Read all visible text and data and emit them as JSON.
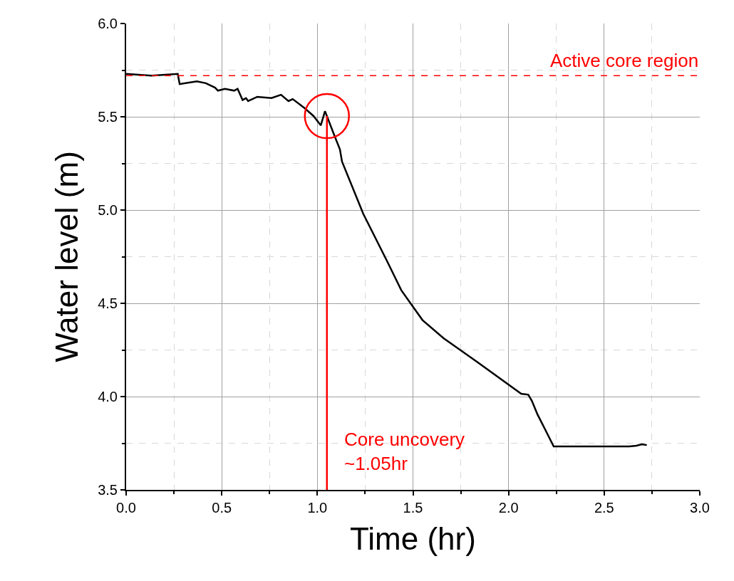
{
  "chart_data": {
    "type": "line",
    "xlabel": "Time (hr)",
    "ylabel": "Water level (m)",
    "xlim": [
      0,
      3
    ],
    "xticks": [
      {
        "value": 0,
        "label": "0.0"
      },
      {
        "value": 0.5,
        "label": "0.5"
      },
      {
        "value": 1,
        "label": "1.0"
      },
      {
        "value": 1.5,
        "label": "1.5"
      },
      {
        "value": 2,
        "label": "2.0"
      },
      {
        "value": 2.5,
        "label": "2.5"
      },
      {
        "value": 3,
        "label": "3.0"
      }
    ],
    "ylim": [
      3.5,
      6
    ],
    "yticks": [
      {
        "value": 3.5,
        "label": "3.5"
      },
      {
        "value": 4,
        "label": "4.0"
      },
      {
        "value": 4.5,
        "label": "4.5"
      },
      {
        "value": 5,
        "label": "5.0"
      },
      {
        "value": 5.5,
        "label": "5.5"
      },
      {
        "value": 6,
        "label": "6.0"
      }
    ],
    "grid": true,
    "marker": "none",
    "line_style": "solid",
    "series": [
      {
        "color": "#000000",
        "x": [
          0,
          0.133,
          0.27,
          0.28,
          0.37,
          0.417,
          0.465,
          0.48,
          0.517,
          0.565,
          0.583,
          0.609,
          0.627,
          0.638,
          0.686,
          0.76,
          0.81,
          0.849,
          0.871,
          0.934,
          0.98,
          1.018,
          1.04,
          1.089,
          1.118,
          1.129,
          1.24,
          1.365,
          1.439,
          1.498,
          1.55,
          1.66,
          1.83,
          2.066,
          2.103,
          2.122,
          2.151,
          2.188,
          2.236,
          2.631,
          2.668,
          2.697,
          2.723
        ],
        "values": [
          5.73,
          5.72,
          5.73,
          5.675,
          5.69,
          5.68,
          5.656,
          5.64,
          5.65,
          5.64,
          5.65,
          5.59,
          5.6,
          5.584,
          5.607,
          5.6,
          5.618,
          5.584,
          5.595,
          5.546,
          5.504,
          5.454,
          5.53,
          5.4,
          5.325,
          5.26,
          4.98,
          4.725,
          4.57,
          4.485,
          4.41,
          4.313,
          4.19,
          4.015,
          4.01,
          3.977,
          3.905,
          3.83,
          3.733,
          3.733,
          3.737,
          3.744,
          3.74
        ]
      }
    ],
    "ref_lines": [
      {
        "axis": "y",
        "value": 5.72,
        "label": "Active core region",
        "color": "#ff0000",
        "line_style": "dashed"
      },
      {
        "axis": "x",
        "value": 1.05,
        "label": "Core uncovery\n~1.05hr",
        "color": "#ff0000",
        "line_style": "solid"
      }
    ]
  }
}
